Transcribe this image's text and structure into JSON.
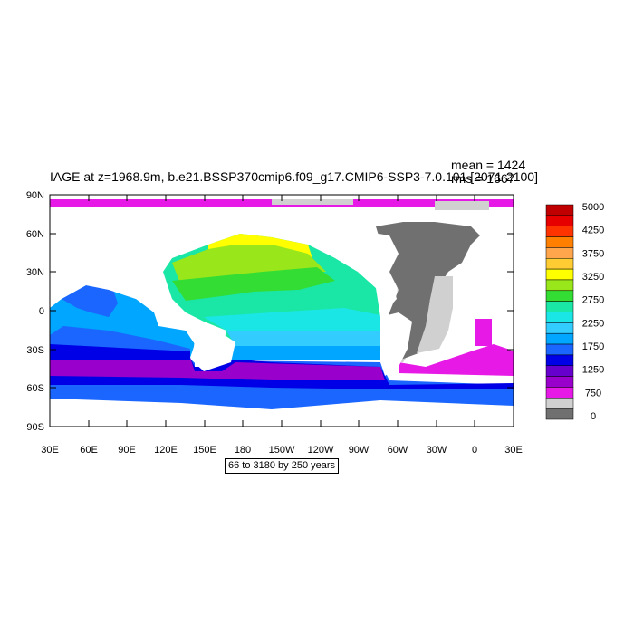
{
  "map": {
    "title": "IAGE at z=1968.9m, b.e21.BSSP370cmip6.f09_g17.CMIP6-SSP3-7.0.101 [2071-2100]",
    "stats": {
      "mean": "mean = 1424",
      "rms": "rms = 1667"
    },
    "info_box": "66 to 3180 by 250 years",
    "lat_ticks": [
      "90N",
      "60N",
      "30N",
      "0",
      "30S",
      "60S",
      "90S"
    ],
    "lon_ticks": [
      "30E",
      "60E",
      "90E",
      "120E",
      "150E",
      "180",
      "150W",
      "120W",
      "90W",
      "60W",
      "30W",
      "0",
      "30E"
    ]
  },
  "colorbar": {
    "labels": [
      "5000",
      "4250",
      "3750",
      "3250",
      "2750",
      "2250",
      "1750",
      "1250",
      "750",
      "0"
    ],
    "colors": [
      "#c00000",
      "#e60000",
      "#ff3300",
      "#ff8000",
      "#ffa64d",
      "#ffcc33",
      "#ffff00",
      "#99e61a",
      "#33dd33",
      "#1ae6a6",
      "#1ae6e6",
      "#33ccff",
      "#00a6ff",
      "#1a66ff",
      "#0000e6",
      "#6600cc",
      "#9900cc",
      "#e619e6",
      "#d0d0d0",
      "#707070"
    ]
  }
}
